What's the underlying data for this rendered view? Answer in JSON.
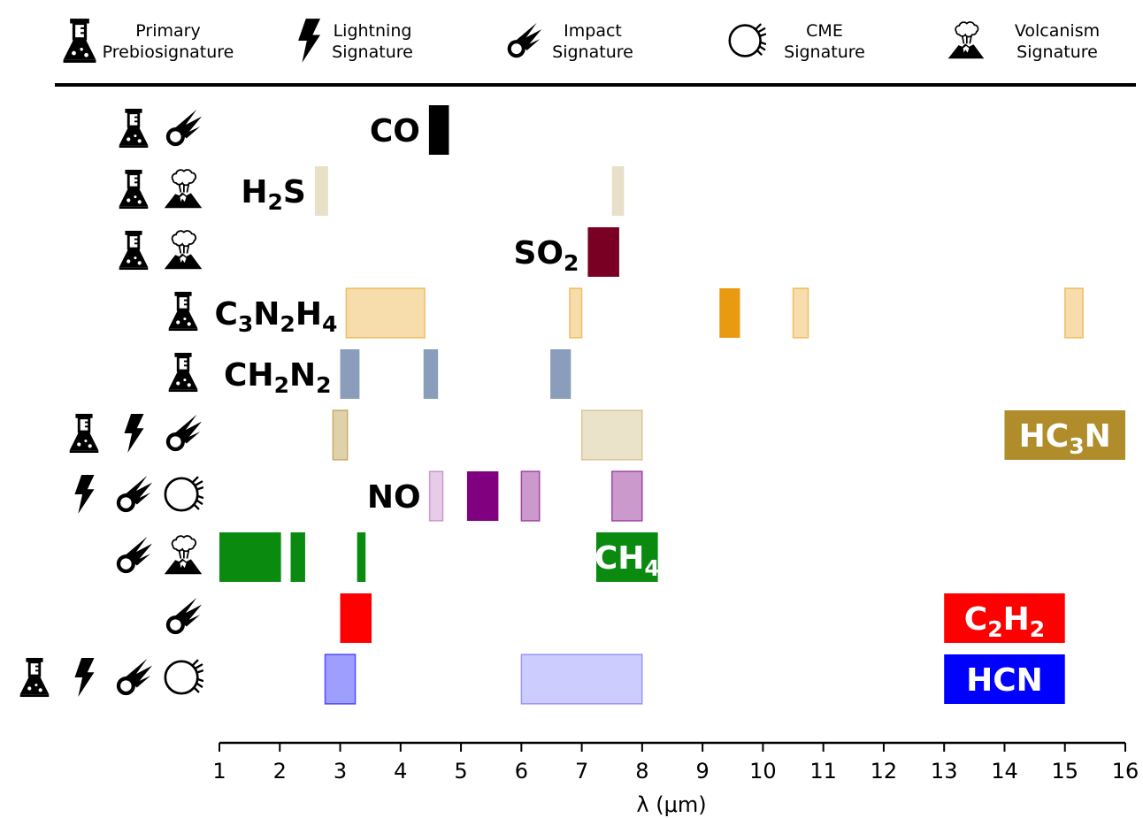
{
  "legend": [
    {
      "icon": "flask-icon",
      "lines": [
        "Primary",
        "Prebiosignature"
      ]
    },
    {
      "icon": "lightning-icon",
      "lines": [
        "Lightning",
        "Signature"
      ]
    },
    {
      "icon": "meteor-icon",
      "lines": [
        "Impact",
        "Signature"
      ]
    },
    {
      "icon": "cme-icon",
      "lines": [
        "CME",
        "Signature"
      ]
    },
    {
      "icon": "volcano-icon",
      "lines": [
        "Volcanism",
        "Signature"
      ]
    }
  ],
  "chart_data": {
    "type": "bar",
    "orientation": "horizontal-ranges",
    "xlabel": "λ (μm)",
    "xlim": [
      1,
      16
    ],
    "xticks": [
      1,
      2,
      3,
      4,
      5,
      6,
      7,
      8,
      9,
      10,
      11,
      12,
      13,
      14,
      15,
      16
    ],
    "grid": false,
    "series": [
      {
        "label": "CO",
        "label_parts": [
          {
            "t": "CO",
            "sub": false
          }
        ],
        "color": "#000000",
        "icons": [
          "flask-icon",
          "meteor-icon"
        ],
        "label_placement": "outside-left",
        "label_color": "#000000",
        "bands": [
          {
            "x0": 4.47,
            "x1": 4.8,
            "alpha": 1
          }
        ]
      },
      {
        "label": "H2S",
        "label_parts": [
          {
            "t": "H",
            "sub": false
          },
          {
            "t": "2",
            "sub": true
          },
          {
            "t": "S",
            "sub": false
          }
        ],
        "color": "#e8e0c8",
        "icons": [
          "flask-icon",
          "volcano-icon"
        ],
        "label_placement": "outside-left",
        "label_color": "#000000",
        "bands": [
          {
            "x0": 2.58,
            "x1": 2.8,
            "alpha": 1
          },
          {
            "x0": 7.5,
            "x1": 7.7,
            "alpha": 1
          }
        ]
      },
      {
        "label": "SO2",
        "label_parts": [
          {
            "t": "SO",
            "sub": false
          },
          {
            "t": "2",
            "sub": true
          }
        ],
        "color": "#7a0023",
        "icons": [
          "flask-icon",
          "volcano-icon"
        ],
        "label_placement": "outside-left",
        "label_color": "#000000",
        "bands": [
          {
            "x0": 7.1,
            "x1": 7.62,
            "alpha": 1
          }
        ]
      },
      {
        "label": "C3N2H4",
        "label_parts": [
          {
            "t": "C",
            "sub": false
          },
          {
            "t": "3",
            "sub": true
          },
          {
            "t": "N",
            "sub": false
          },
          {
            "t": "2",
            "sub": true
          },
          {
            "t": "H",
            "sub": false
          },
          {
            "t": "4",
            "sub": true
          }
        ],
        "color": "#e89a10",
        "icons": [
          "flask-icon"
        ],
        "label_placement": "outside-left",
        "label_color": "#000000",
        "bands": [
          {
            "x0": 3.1,
            "x1": 4.4,
            "alpha": 0.35
          },
          {
            "x0": 6.8,
            "x1": 7.0,
            "alpha": 0.35
          },
          {
            "x0": 9.28,
            "x1": 9.62,
            "alpha": 1
          },
          {
            "x0": 10.5,
            "x1": 10.75,
            "alpha": 0.35
          },
          {
            "x0": 15.0,
            "x1": 15.3,
            "alpha": 0.35
          }
        ]
      },
      {
        "label": "CH2N2",
        "label_parts": [
          {
            "t": "CH",
            "sub": false
          },
          {
            "t": "2",
            "sub": true
          },
          {
            "t": "N",
            "sub": false
          },
          {
            "t": "2",
            "sub": true
          }
        ],
        "color": "#8a9dbb",
        "icons": [
          "flask-icon"
        ],
        "label_placement": "outside-left",
        "label_color": "#000000",
        "bands": [
          {
            "x0": 3.0,
            "x1": 3.32,
            "alpha": 1
          },
          {
            "x0": 4.38,
            "x1": 4.62,
            "alpha": 1
          },
          {
            "x0": 6.48,
            "x1": 6.82,
            "alpha": 1
          }
        ]
      },
      {
        "label": "HC3N",
        "label_parts": [
          {
            "t": "HC",
            "sub": false
          },
          {
            "t": "3",
            "sub": true
          },
          {
            "t": "N",
            "sub": false
          }
        ],
        "color": "#b08d2a",
        "icons": [
          "flask-icon",
          "lightning-icon",
          "meteor-icon"
        ],
        "label_placement": "box",
        "label_color": "#ffffff",
        "label_box": {
          "x0": 14.0,
          "x1": 16.0
        },
        "bands": [
          {
            "x0": 2.88,
            "x1": 3.12,
            "alpha": 0.4
          },
          {
            "x0": 7.0,
            "x1": 8.0,
            "alpha": 0.25
          }
        ]
      },
      {
        "label": "NO",
        "label_parts": [
          {
            "t": "NO",
            "sub": false
          }
        ],
        "color": "#800080",
        "icons": [
          "lightning-icon",
          "meteor-icon",
          "cme-icon"
        ],
        "label_placement": "outside-left",
        "label_color": "#000000",
        "bands": [
          {
            "x0": 4.48,
            "x1": 4.7,
            "alpha": 0.2
          },
          {
            "x0": 5.1,
            "x1": 5.62,
            "alpha": 1
          },
          {
            "x0": 6.0,
            "x1": 6.3,
            "alpha": 0.4
          },
          {
            "x0": 7.5,
            "x1": 8.0,
            "alpha": 0.4
          }
        ]
      },
      {
        "label": "CH4",
        "label_parts": [
          {
            "t": "CH",
            "sub": false
          },
          {
            "t": "4",
            "sub": true
          }
        ],
        "color": "#0b8a10",
        "icons": [
          "meteor-icon",
          "volcano-icon"
        ],
        "label_placement": "box",
        "label_color": "#ffffff",
        "label_box": {
          "x0": 7.24,
          "x1": 8.26
        },
        "bands": [
          {
            "x0": 1.0,
            "x1": 2.02,
            "alpha": 1
          },
          {
            "x0": 2.18,
            "x1": 2.42,
            "alpha": 1
          },
          {
            "x0": 3.28,
            "x1": 3.42,
            "alpha": 1
          }
        ]
      },
      {
        "label": "C2H2",
        "label_parts": [
          {
            "t": "C",
            "sub": false
          },
          {
            "t": "2",
            "sub": true
          },
          {
            "t": "H",
            "sub": false
          },
          {
            "t": "2",
            "sub": true
          }
        ],
        "color": "#ff0000",
        "icons": [
          "meteor-icon"
        ],
        "label_placement": "box",
        "label_color": "#ffffff",
        "label_box": {
          "x0": 13.0,
          "x1": 15.0
        },
        "bands": [
          {
            "x0": 3.0,
            "x1": 3.52,
            "alpha": 1
          }
        ]
      },
      {
        "label": "HCN",
        "label_parts": [
          {
            "t": "HCN",
            "sub": false
          }
        ],
        "color": "#0000ff",
        "icons": [
          "flask-icon",
          "lightning-icon",
          "meteor-icon",
          "cme-icon"
        ],
        "label_placement": "box",
        "label_color": "#ffffff",
        "label_box": {
          "x0": 13.0,
          "x1": 15.0
        },
        "bands": [
          {
            "x0": 2.75,
            "x1": 3.25,
            "alpha": 0.38
          },
          {
            "x0": 6.0,
            "x1": 8.0,
            "alpha": 0.2
          }
        ]
      }
    ]
  }
}
